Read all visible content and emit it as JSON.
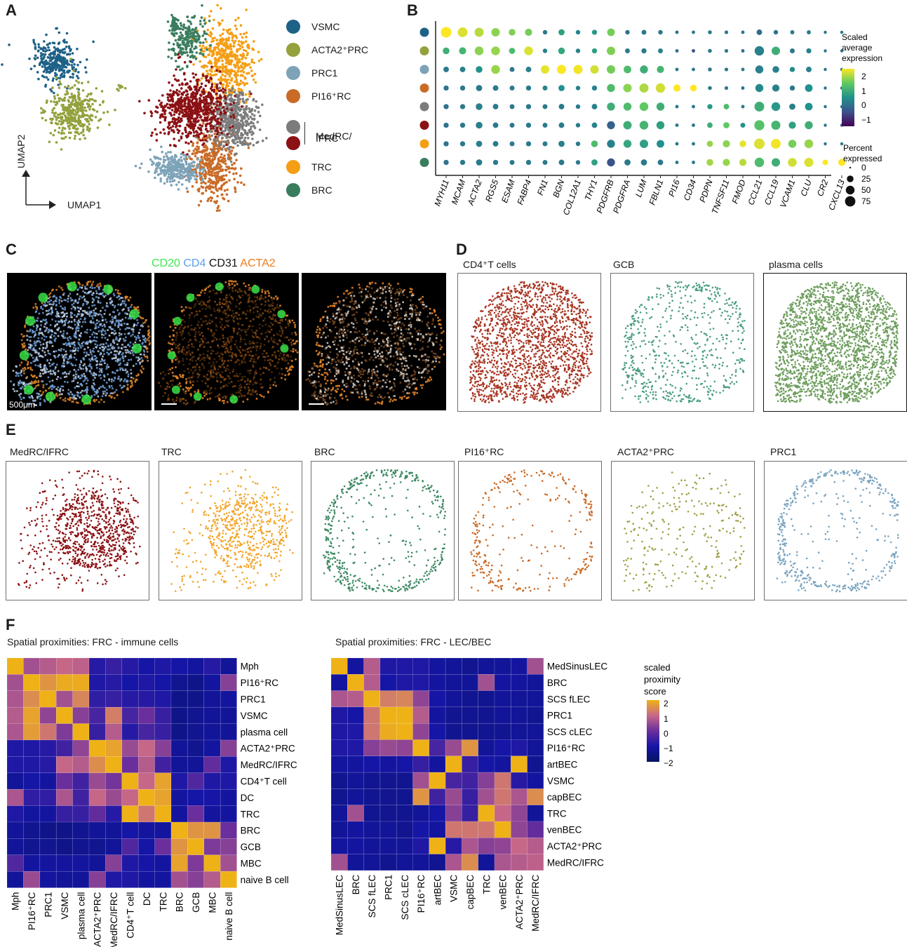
{
  "panels": {
    "a": "A",
    "b": "B",
    "c": "C",
    "d": "D",
    "e": "E",
    "f": "F"
  },
  "umap": {
    "x_label": "UMAP1",
    "y_label": "UMAP2",
    "legend": [
      {
        "label": "VSMC",
        "color": "#1e6187"
      },
      {
        "label": "ACTA2⁺PRC",
        "color": "#94a13d"
      },
      {
        "label": "PRC1",
        "color": "#7da3b8"
      },
      {
        "label": "PI16⁺RC",
        "color": "#c96b27"
      },
      {
        "label": "MedRC/",
        "color": "#7c7c7c"
      },
      {
        "label": "IFRC",
        "color": "#8b1114"
      },
      {
        "label": "TRC",
        "color": "#f59e14"
      },
      {
        "label": "BRC",
        "color": "#3a7d5e"
      }
    ]
  },
  "dotplot": {
    "genes": [
      "MYH11",
      "MCAM",
      "ACTA2",
      "RGS5",
      "ESAM",
      "FABP4",
      "FN1",
      "BGN",
      "COL12A1",
      "THY1",
      "PDGFRB",
      "PDGFRA",
      "LUM",
      "FBLN1",
      "PI16",
      "CD34",
      "PDPN",
      "TNFSF11",
      "FMOD",
      "CCL21",
      "CCL19",
      "VCAM1",
      "CLU",
      "CR2",
      "CXCL13"
    ],
    "row_colors": [
      "#1e6187",
      "#94a13d",
      "#7da3b8",
      "#c96b27",
      "#7c7c7c",
      "#8b1114",
      "#f59e14",
      "#3a7d5e"
    ],
    "color_legend_title": [
      "Scaled",
      "average",
      "expression"
    ],
    "color_ticks": [
      "2",
      "1",
      "0",
      "−1"
    ],
    "size_legend_title": [
      "Percent",
      "expressed"
    ],
    "size_ticks": [
      "0",
      "25",
      "50",
      "75"
    ],
    "scaled": [
      [
        2.2,
        1.9,
        1.6,
        1.2,
        1.1,
        1.0,
        -0.3,
        0.2,
        -0.2,
        0.1,
        1.0,
        -0.4,
        -0.3,
        -0.3,
        -0.4,
        -0.3,
        -0.3,
        -0.3,
        -0.4,
        -0.5,
        -0.4,
        -0.3,
        -0.3,
        -0.3,
        -0.3
      ],
      [
        0.4,
        0.5,
        1.2,
        1.3,
        0.6,
        1.9,
        -0.2,
        0.3,
        -0.2,
        0.2,
        1.1,
        -0.3,
        -0.3,
        -0.2,
        -0.4,
        -0.8,
        -0.3,
        -0.3,
        -0.4,
        -0.2,
        0.4,
        -0.3,
        -0.2,
        -0.3,
        -0.3
      ],
      [
        -0.3,
        -0.2,
        0.0,
        1.3,
        -0.3,
        -0.2,
        2.0,
        2.2,
        2.1,
        1.8,
        1.0,
        0.6,
        0.4,
        0.5,
        -0.3,
        -0.3,
        -0.3,
        -0.3,
        -0.3,
        -0.2,
        -0.2,
        -0.1,
        -0.2,
        -0.3,
        -0.3
      ],
      [
        -0.4,
        -0.3,
        -0.3,
        -0.3,
        -0.3,
        -0.3,
        -0.2,
        0.0,
        -0.2,
        -0.2,
        0.6,
        1.2,
        1.5,
        1.8,
        2.3,
        2.2,
        -0.3,
        -0.3,
        -0.4,
        -0.1,
        -0.2,
        -0.3,
        0.0,
        -0.3,
        -0.3
      ],
      [
        -0.4,
        -0.3,
        -0.2,
        -0.3,
        -0.3,
        -0.3,
        -0.3,
        -0.3,
        -0.3,
        -0.2,
        0.4,
        0.6,
        0.8,
        0.4,
        -0.3,
        -0.3,
        0.1,
        0.6,
        -0.3,
        0.4,
        0.1,
        -0.2,
        0.0,
        -0.3,
        -0.3
      ],
      [
        -0.4,
        -0.3,
        -0.2,
        -0.3,
        -0.3,
        -0.3,
        -0.3,
        -0.3,
        -0.3,
        -0.2,
        -0.6,
        0.4,
        0.5,
        0.2,
        -0.3,
        -0.3,
        0.4,
        0.8,
        0.0,
        0.7,
        0.5,
        0.2,
        0.4,
        -0.3,
        -0.3
      ],
      [
        -0.4,
        -0.3,
        -0.2,
        -0.3,
        -0.3,
        -0.3,
        -0.3,
        -0.2,
        -0.3,
        0.6,
        -0.2,
        0.3,
        0.2,
        0.0,
        -0.3,
        -0.3,
        1.3,
        1.2,
        2.0,
        1.9,
        2.1,
        1.0,
        1.3,
        -0.3,
        -0.3
      ],
      [
        -0.4,
        -0.3,
        -0.3,
        -0.3,
        -0.3,
        -0.3,
        -0.3,
        -0.3,
        -0.3,
        0.2,
        -0.8,
        -0.3,
        -0.3,
        -0.3,
        -0.3,
        -0.3,
        1.4,
        1.3,
        1.6,
        0.6,
        0.4,
        1.8,
        1.9,
        2.2,
        2.3
      ]
    ],
    "pct": [
      [
        78,
        65,
        55,
        45,
        25,
        30,
        8,
        20,
        8,
        12,
        35,
        8,
        10,
        8,
        3,
        3,
        5,
        4,
        3,
        15,
        8,
        6,
        6,
        2,
        2
      ],
      [
        25,
        30,
        50,
        50,
        20,
        50,
        8,
        25,
        8,
        12,
        45,
        10,
        12,
        10,
        3,
        3,
        5,
        4,
        3,
        60,
        45,
        10,
        12,
        2,
        2
      ],
      [
        15,
        15,
        25,
        50,
        10,
        15,
        45,
        55,
        55,
        45,
        45,
        35,
        40,
        30,
        3,
        3,
        5,
        4,
        3,
        40,
        25,
        12,
        15,
        2,
        2
      ],
      [
        12,
        12,
        20,
        15,
        10,
        12,
        10,
        20,
        8,
        12,
        40,
        45,
        55,
        60,
        30,
        25,
        5,
        4,
        3,
        40,
        30,
        12,
        35,
        2,
        2
      ],
      [
        12,
        12,
        25,
        15,
        10,
        12,
        10,
        15,
        8,
        15,
        40,
        40,
        50,
        40,
        3,
        3,
        12,
        15,
        3,
        65,
        50,
        20,
        35,
        2,
        2
      ],
      [
        12,
        12,
        25,
        15,
        10,
        12,
        10,
        15,
        8,
        15,
        40,
        45,
        50,
        40,
        3,
        3,
        15,
        20,
        10,
        70,
        55,
        30,
        40,
        2,
        2
      ],
      [
        12,
        12,
        20,
        15,
        10,
        12,
        10,
        20,
        8,
        25,
        40,
        40,
        45,
        35,
        3,
        3,
        20,
        30,
        25,
        78,
        65,
        40,
        50,
        2,
        2
      ],
      [
        12,
        12,
        20,
        12,
        10,
        12,
        10,
        15,
        8,
        20,
        40,
        20,
        20,
        15,
        3,
        3,
        25,
        30,
        30,
        60,
        45,
        50,
        55,
        15,
        30
      ]
    ]
  },
  "microscopy": {
    "title_parts": [
      {
        "text": "CD20",
        "color": "#3ee84e"
      },
      {
        "text": "CD4",
        "color": "#5aa0e8"
      },
      {
        "text": "CD31",
        "color": "#111111"
      },
      {
        "text": "ACTA2",
        "color": "#f07b1b"
      }
    ],
    "scale_label": "500μm"
  },
  "spatial_d": [
    {
      "title": "CD4⁺T cells",
      "color": "#a83623"
    },
    {
      "title": "GCB",
      "color": "#4b9e80"
    },
    {
      "title": "plasma cells",
      "color": "#6e9e5e"
    }
  ],
  "spatial_e": [
    {
      "title": "MedRC/IFRC",
      "color": "#8b1114"
    },
    {
      "title": "TRC",
      "color": "#f2a52a"
    },
    {
      "title": "BRC",
      "color": "#3f8a64"
    },
    {
      "title": "PI16⁺RC",
      "color": "#c96b27"
    },
    {
      "title": "ACTA2⁺PRC",
      "color": "#a0a045"
    },
    {
      "title": "PRC1",
      "color": "#7ba4c0"
    }
  ],
  "heatmap_immune": {
    "title": "Spatial proximities: FRC - immune cells",
    "rows": [
      "Mph",
      "PI16⁺RC",
      "PRC1",
      "VSMC",
      "plasma cell",
      "ACTA2⁺PRC",
      "MedRC/IFRC",
      "CD4⁺T cell",
      "DC",
      "TRC",
      "BRC",
      "GCB",
      "MBC",
      "naive B cell"
    ],
    "cols": [
      "Mph",
      "PI16⁺RC",
      "PRC1",
      "VSMC",
      "plasma cell",
      "ACTA2⁺PRC",
      "MedRC/IFRC",
      "CD4⁺T cell",
      "DC",
      "TRC",
      "BRC",
      "GCB",
      "MBC",
      "naive B cell"
    ],
    "values": [
      [
        2.0,
        0.6,
        0.8,
        1.0,
        0.9,
        -0.8,
        -0.6,
        -0.8,
        -1.0,
        -0.9,
        -1.0,
        -1.1,
        -0.8,
        -1.2
      ],
      [
        0.6,
        2.0,
        1.6,
        1.9,
        1.9,
        -0.9,
        -0.8,
        -1.0,
        -0.9,
        -1.0,
        -1.3,
        -1.4,
        -1.1,
        0.3
      ],
      [
        0.7,
        1.5,
        2.0,
        0.6,
        1.4,
        -0.7,
        -0.6,
        -0.8,
        -0.8,
        -0.9,
        -1.4,
        -1.4,
        -1.2,
        -1.1
      ],
      [
        0.8,
        1.8,
        0.4,
        2.0,
        0.3,
        -0.4,
        1.3,
        -0.4,
        0.0,
        -0.6,
        -1.4,
        -1.3,
        -1.2,
        -1.2
      ],
      [
        0.7,
        1.7,
        1.2,
        0.2,
        2.0,
        -0.6,
        0.8,
        -0.8,
        -0.4,
        -0.6,
        -1.4,
        -1.3,
        -1.2,
        -1.2
      ],
      [
        -0.9,
        -0.9,
        -0.8,
        -0.5,
        0.4,
        2.0,
        1.8,
        0.5,
        1.0,
        0.3,
        -1.2,
        -1.3,
        -1.1,
        0.3
      ],
      [
        -0.9,
        -0.9,
        -0.8,
        1.0,
        0.8,
        1.5,
        2.0,
        0.0,
        0.8,
        -0.5,
        -1.2,
        -1.2,
        -0.1,
        -0.9
      ],
      [
        -1.2,
        -1.0,
        -1.1,
        0.0,
        -0.5,
        0.5,
        0.1,
        2.0,
        1.0,
        1.8,
        -0.9,
        -0.3,
        -0.9,
        -0.9
      ],
      [
        0.7,
        -0.7,
        -0.7,
        0.7,
        -0.5,
        1.0,
        0.5,
        1.0,
        2.0,
        1.8,
        -1.1,
        -1.0,
        -1.0,
        -1.1
      ],
      [
        -0.9,
        -1.1,
        -1.1,
        -0.6,
        -0.6,
        -0.1,
        -0.8,
        2.0,
        1.2,
        2.0,
        -1.1,
        0.0,
        -1.1,
        -1.1
      ],
      [
        -1.2,
        -1.3,
        -1.4,
        -1.4,
        -1.3,
        -1.2,
        -1.2,
        -1.0,
        -1.1,
        -1.1,
        2.0,
        1.6,
        1.6,
        0.0
      ],
      [
        -1.2,
        -1.3,
        -1.3,
        -1.4,
        -1.3,
        -1.3,
        -1.2,
        -0.3,
        -1.0,
        0.0,
        1.6,
        2.0,
        0.2,
        0.3
      ],
      [
        -0.3,
        -1.1,
        -1.1,
        -1.1,
        -1.1,
        -1.2,
        0.3,
        -0.9,
        -1.0,
        -1.1,
        1.8,
        0.2,
        2.0,
        0.6
      ],
      [
        -1.2,
        0.5,
        -1.1,
        -1.2,
        -1.2,
        0.3,
        -0.9,
        -0.9,
        -1.1,
        -1.1,
        0.6,
        0.3,
        0.8,
        2.0
      ]
    ]
  },
  "heatmap_lec": {
    "title": "Spatial proximities: FRC - LEC/BEC",
    "rows": [
      "MedSinusLEC",
      "BRC",
      "SCS fLEC",
      "PRC1",
      "SCS cLEC",
      "PI16⁺RC",
      "artBEC",
      "VSMC",
      "capBEC",
      "TRC",
      "venBEC",
      "ACTA2⁺PRC",
      "MedRC/IFRC"
    ],
    "cols": [
      "MedSinusLEC",
      "BRC",
      "SCS fLEC",
      "PRC1",
      "SCS cLEC",
      "PI16⁺RC",
      "artBEC",
      "VSMC",
      "capBEC",
      "TRC",
      "venBEC",
      "ACTA2⁺PRC",
      "MedRC/IFRC"
    ],
    "values": [
      [
        2.0,
        -1.1,
        0.8,
        -0.9,
        -0.9,
        -0.9,
        -1.1,
        -1.2,
        -1.3,
        -1.2,
        -1.2,
        -1.1,
        0.6
      ],
      [
        -1.1,
        2.0,
        0.8,
        -1.0,
        -0.9,
        -0.9,
        -1.1,
        -1.2,
        -1.2,
        0.6,
        -1.1,
        -1.1,
        -1.2
      ],
      [
        0.7,
        0.8,
        2.0,
        1.3,
        1.4,
        0.4,
        -1.0,
        -1.2,
        -1.3,
        -1.3,
        -1.2,
        -1.2,
        -1.2
      ],
      [
        -0.9,
        -1.0,
        1.2,
        2.0,
        2.0,
        0.8,
        -1.1,
        -1.3,
        -1.3,
        -1.3,
        -1.2,
        -1.2,
        -1.3
      ],
      [
        -0.9,
        -0.9,
        1.2,
        1.9,
        2.0,
        0.4,
        -1.0,
        -1.3,
        -1.3,
        -1.3,
        -1.3,
        -1.2,
        -1.2
      ],
      [
        -0.9,
        -0.9,
        0.3,
        0.5,
        0.4,
        2.0,
        -0.4,
        0.5,
        1.6,
        -1.2,
        -1.0,
        -0.9,
        -1.2
      ],
      [
        -1.1,
        -1.1,
        -1.0,
        -1.1,
        -1.0,
        -0.6,
        -1.1,
        2.0,
        -0.6,
        -1.0,
        -1.1,
        2.0,
        -1.3
      ],
      [
        -1.3,
        -1.2,
        -1.3,
        -1.3,
        -1.3,
        0.6,
        2.0,
        -0.4,
        -0.5,
        0.3,
        1.2,
        -0.8,
        -1.1
      ],
      [
        -1.3,
        -1.2,
        -1.3,
        -1.3,
        -1.3,
        1.6,
        -0.5,
        0.5,
        -0.6,
        0.6,
        1.2,
        0.7,
        1.5
      ],
      [
        -1.2,
        0.6,
        -1.3,
        -1.3,
        -1.3,
        -1.2,
        -1.0,
        0.3,
        -0.6,
        2.0,
        1.0,
        0.4,
        -1.2
      ],
      [
        -1.2,
        -1.1,
        -1.2,
        -1.2,
        -1.3,
        -1.0,
        -1.1,
        1.2,
        1.2,
        1.2,
        2.0,
        0.4,
        -0.1
      ],
      [
        -1.1,
        -1.1,
        -1.2,
        -1.2,
        -1.2,
        -0.9,
        2.0,
        -0.8,
        0.7,
        0.3,
        0.4,
        1.0,
        0.8
      ],
      [
        0.6,
        -1.2,
        -1.2,
        -1.3,
        -1.2,
        -1.2,
        -1.3,
        0.7,
        1.5,
        -1.2,
        0.7,
        0.8,
        0.9
      ]
    ]
  },
  "heat_legend": {
    "title": [
      "scaled",
      "proximity",
      "score"
    ],
    "ticks": [
      "2",
      "1",
      "0",
      "−1",
      "−2"
    ]
  }
}
